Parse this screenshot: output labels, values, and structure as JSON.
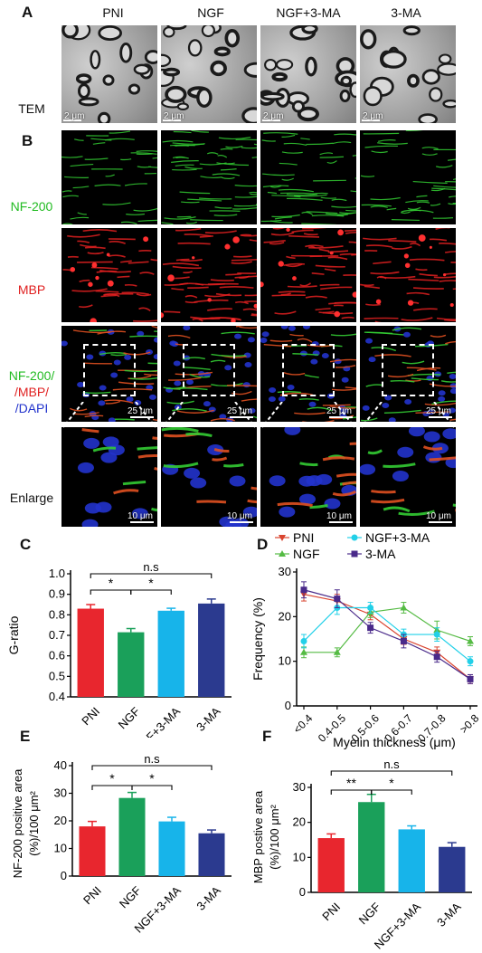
{
  "panels": {
    "A": "A",
    "B": "B",
    "C": "C",
    "D": "D",
    "E": "E",
    "F": "F"
  },
  "groups": [
    "PNI",
    "NGF",
    "NGF+3-MA",
    "3-MA"
  ],
  "row_labels": {
    "tem": "TEM",
    "nf200": "NF-200",
    "mbp": "MBP",
    "merge_line1": "NF-200/",
    "merge_line2": "/MBP/",
    "merge_line3": "/DAPI",
    "enlarge": "Enlarge"
  },
  "scale_labels": {
    "tem": "2 μm",
    "merge": "25 μm",
    "enlarge": "10 μm"
  },
  "colors": {
    "PNI": "#e8262e",
    "NGF": "#1aa05a",
    "NGF+3-MA": "#17b4ea",
    "3-MA": "#2b3a8f",
    "green": "#33cc33",
    "red": "#e02020",
    "blue": "#2233cc",
    "D_PNI": "#d9442f",
    "D_NGF": "#55bb44",
    "D_NGF3MA": "#22d0e8",
    "D_3MA": "#4a2a8a"
  },
  "chart_data": [
    {
      "id": "C",
      "type": "bar",
      "categories": [
        "PNI",
        "NGF",
        "NGF+3-MA",
        "3-MA"
      ],
      "values": [
        0.83,
        0.715,
        0.82,
        0.855
      ],
      "errors": [
        0.02,
        0.018,
        0.012,
        0.022
      ],
      "ylabel": "G-ratio",
      "ylim": [
        0.4,
        1.0
      ],
      "yticks": [
        "0.4",
        "0.5",
        "0.6",
        "0.7",
        "0.8",
        "0.9",
        "1.0"
      ],
      "brackets": [
        {
          "from": 0,
          "to": 1,
          "label": "*"
        },
        {
          "from": 1,
          "to": 2,
          "label": "*"
        },
        {
          "from": 0,
          "to": 3,
          "label": "n.s"
        }
      ]
    },
    {
      "id": "D",
      "type": "line",
      "categories": [
        "<0.4",
        "0.4-0.5",
        "0.5-0.6",
        "0.6-0.7",
        "0.7-0.8",
        ">0.8"
      ],
      "xlabel": "Myelin thickness (μm)",
      "ylabel": "Frequency (%)",
      "ylim": [
        0,
        30
      ],
      "yticks": [
        "0",
        "10",
        "20",
        "30"
      ],
      "series": [
        {
          "name": "PNI",
          "values": [
            25,
            23.5,
            20.5,
            15,
            12,
            6
          ],
          "errors": [
            1.5,
            1.5,
            1.2,
            1.2,
            1.2,
            1
          ]
        },
        {
          "name": "NGF",
          "values": [
            12,
            12,
            21,
            22,
            17,
            14.5
          ],
          "errors": [
            1.2,
            1,
            1.2,
            1.2,
            2,
            1
          ]
        },
        {
          "name": "NGF+3-MA",
          "values": [
            14.5,
            22,
            22,
            16,
            16,
            10
          ],
          "errors": [
            1.5,
            1.5,
            1.2,
            1.2,
            1.5,
            1
          ]
        },
        {
          "name": "3-MA",
          "values": [
            26,
            24,
            17.5,
            14.5,
            11,
            6
          ],
          "errors": [
            1.8,
            2,
            1.2,
            1.5,
            1.2,
            1
          ]
        }
      ]
    },
    {
      "id": "E",
      "type": "bar",
      "categories": [
        "PNI",
        "NGF",
        "NGF+3-MA",
        "3-MA"
      ],
      "values": [
        18,
        28.3,
        19.8,
        15.5
      ],
      "errors": [
        1.8,
        2,
        1.5,
        1.2
      ],
      "ylabel_line1": "NF-200 positive area",
      "ylabel_line2": "(%)/100 μm²",
      "ylim": [
        0,
        40
      ],
      "yticks": [
        "0",
        "10",
        "20",
        "30",
        "40"
      ],
      "brackets": [
        {
          "from": 0,
          "to": 1,
          "label": "*"
        },
        {
          "from": 1,
          "to": 2,
          "label": "*"
        },
        {
          "from": 0,
          "to": 3,
          "label": "n.s"
        }
      ]
    },
    {
      "id": "F",
      "type": "bar",
      "categories": [
        "PNI",
        "NGF",
        "NGF+3-MA",
        "3-MA"
      ],
      "values": [
        15.5,
        25.8,
        18,
        13
      ],
      "errors": [
        1.2,
        2.2,
        1,
        1.2
      ],
      "ylabel_line1": "MBP postive area",
      "ylabel_line2": "(%)/100 μm²",
      "ylim": [
        0,
        30
      ],
      "yticks": [
        "0",
        "10",
        "20",
        "30"
      ],
      "brackets": [
        {
          "from": 0,
          "to": 1,
          "label": "**"
        },
        {
          "from": 1,
          "to": 2,
          "label": "*"
        },
        {
          "from": 0,
          "to": 3,
          "label": "n.s"
        }
      ]
    }
  ]
}
